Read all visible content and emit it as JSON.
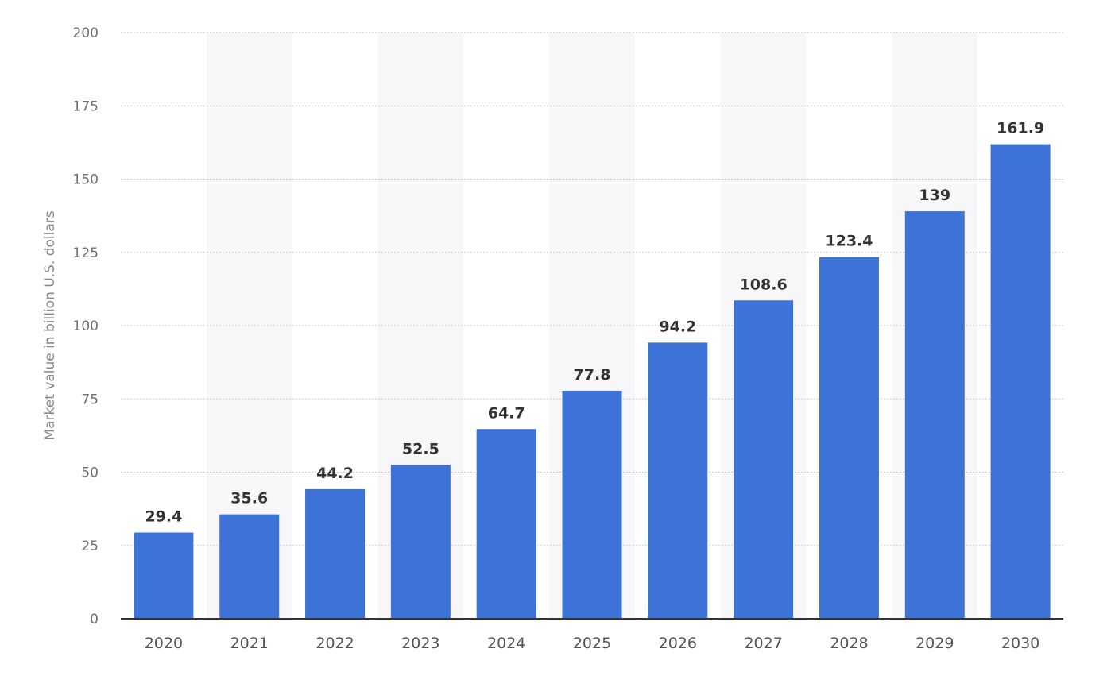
{
  "chart_data": {
    "type": "bar",
    "categories": [
      "2020",
      "2021",
      "2022",
      "2023",
      "2024",
      "2025",
      "2026",
      "2027",
      "2028",
      "2029",
      "2030"
    ],
    "values": [
      29.4,
      35.6,
      44.2,
      52.5,
      64.7,
      77.8,
      94.2,
      108.6,
      123.4,
      139,
      161.9
    ],
    "data_labels": [
      "29.4",
      "35.6",
      "44.2",
      "52.5",
      "64.7",
      "77.8",
      "94.2",
      "108.6",
      "123.4",
      "139",
      "161.9"
    ],
    "title": "",
    "xlabel": "",
    "ylabel": "Market value in billion U.S. dollars",
    "ylim": [
      0,
      200
    ],
    "yticks": [
      0,
      25,
      50,
      75,
      100,
      125,
      150,
      175,
      200
    ],
    "grid": true,
    "legend": "none",
    "colors": {
      "bar": "#3d72d7",
      "band": "#f7f7f9",
      "grid": "#c8c8c8",
      "axis": "#333333"
    }
  }
}
